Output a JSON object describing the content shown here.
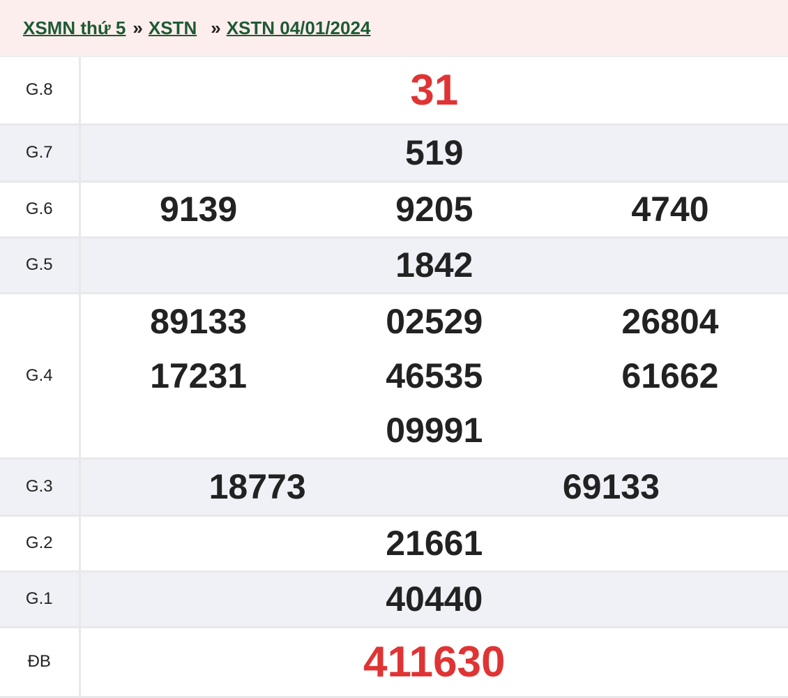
{
  "breadcrumb": [
    {
      "label": "XSMN thứ 5"
    },
    {
      "label": "XSTN"
    },
    {
      "label": "XSTN 04/01/2024"
    }
  ],
  "separator": "»",
  "prizes": [
    {
      "label": "G.8",
      "numbers": [
        "31"
      ]
    },
    {
      "label": "G.7",
      "numbers": [
        "519"
      ]
    },
    {
      "label": "G.6",
      "numbers": [
        "9139",
        "9205",
        "4740"
      ]
    },
    {
      "label": "G.5",
      "numbers": [
        "1842"
      ]
    },
    {
      "label": "G.4",
      "numbers": [
        "89133",
        "02529",
        "26804",
        "17231",
        "46535",
        "61662",
        "09991"
      ]
    },
    {
      "label": "G.3",
      "numbers": [
        "18773",
        "69133"
      ]
    },
    {
      "label": "G.2",
      "numbers": [
        "21661"
      ]
    },
    {
      "label": "G.1",
      "numbers": [
        "40440"
      ]
    },
    {
      "label": "ĐB",
      "numbers": [
        "411630"
      ]
    }
  ],
  "colors": {
    "highlight": "#e03434",
    "link": "#1e5a32",
    "header_bg": "#fdeeee",
    "alt_row_bg": "#eff1f6"
  }
}
